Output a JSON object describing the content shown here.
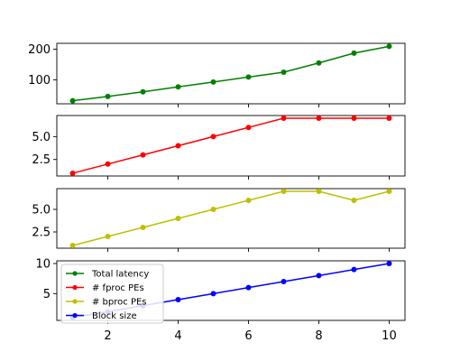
{
  "chart_data": {
    "type": "line",
    "x": [
      1,
      2,
      3,
      4,
      5,
      6,
      7,
      8,
      9,
      10
    ],
    "xticks": [
      2,
      4,
      6,
      8,
      10
    ],
    "xlim": [
      0.55,
      10.45
    ],
    "panels": [
      {
        "series": [
          {
            "name": "Total latency",
            "color": "#008000",
            "values": [
              32,
              46,
              61,
              77,
              93,
              109,
              125,
              155,
              187,
              209
            ]
          }
        ],
        "ylim": [
          22,
          219
        ],
        "yticks": [
          {
            "value": 100,
            "label": "100"
          },
          {
            "value": 200,
            "label": "200"
          }
        ]
      },
      {
        "series": [
          {
            "name": "# fproc PEs",
            "color": "#ff0000",
            "values": [
              1,
              2,
              3,
              4,
              5,
              6,
              7,
              7,
              7,
              7
            ]
          }
        ],
        "ylim": [
          0.7,
          7.3
        ],
        "yticks": [
          {
            "value": 2.5,
            "label": "2.5"
          },
          {
            "value": 5.0,
            "label": "5.0"
          }
        ]
      },
      {
        "series": [
          {
            "name": "# bproc PEs",
            "color": "#bfbf00",
            "values": [
              1,
              2,
              3,
              4,
              5,
              6,
              7,
              7,
              6,
              7
            ]
          }
        ],
        "ylim": [
          0.7,
          7.3
        ],
        "yticks": [
          {
            "value": 2.5,
            "label": "2.5"
          },
          {
            "value": 5.0,
            "label": "5.0"
          }
        ]
      },
      {
        "series": [
          {
            "name": "Block size",
            "color": "#0000ff",
            "values": [
              1,
              2,
              3,
              4,
              5,
              6,
              7,
              8,
              9,
              10
            ]
          }
        ],
        "ylim": [
          0.55,
          10.45
        ],
        "yticks": [
          {
            "value": 5,
            "label": "5"
          },
          {
            "value": 10,
            "label": "10"
          }
        ]
      }
    ],
    "legend": {
      "placement": "lower-left of bottom panel",
      "entries": [
        {
          "label": "Total latency",
          "color": "#008000"
        },
        {
          "label": "# fproc PEs",
          "color": "#ff0000"
        },
        {
          "label": "# bproc PEs",
          "color": "#bfbf00"
        },
        {
          "label": "Block size",
          "color": "#0000ff"
        }
      ]
    },
    "grid": false
  }
}
